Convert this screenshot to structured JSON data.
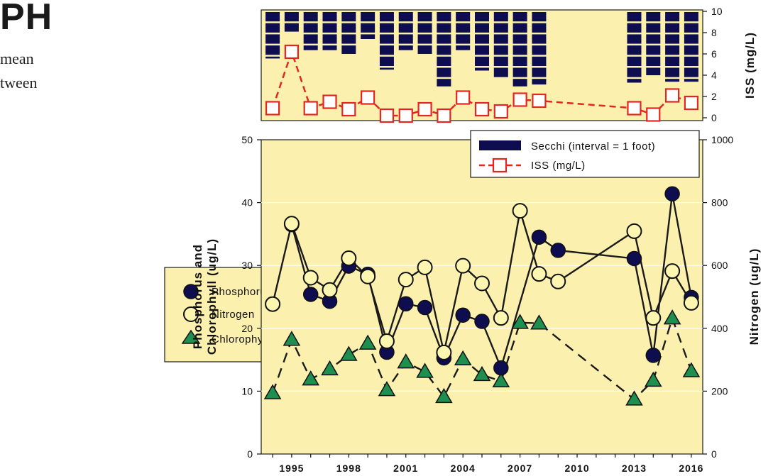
{
  "page_text": {
    "title_fragment": "PH",
    "line1": "mean",
    "line2": "tween"
  },
  "colors": {
    "panel_bg": "#fcf0ae",
    "secchi_bar": "#0d0d4f",
    "iss_line": "#e3261f",
    "phosphorus_fill": "#0d0d4f",
    "nitrogen_fill": "#fdf6b0",
    "chlorophyll_fill": "#1e8f4e",
    "line_color": "#1a1a1a"
  },
  "left_legend": {
    "items": [
      {
        "label": "Phosphorus",
        "icon": "circle-navy-icon"
      },
      {
        "label": "Nitrogen",
        "icon": "circle-yellow-icon"
      },
      {
        "label": "Chlorophyll",
        "icon": "triangle-green-icon"
      }
    ]
  },
  "chart_data": [
    {
      "type": "bar",
      "panel": "top",
      "ylabel": "ISS (mg/L)",
      "ylim": [
        0,
        10
      ],
      "yticks": [
        "0",
        "2",
        "4",
        "6",
        "8",
        "10"
      ],
      "series": [
        {
          "name": "Secchi (interval = 1 foot)",
          "style": "bars hanging from top, segmented per foot",
          "x": [
            1994,
            1995,
            1996,
            1997,
            1998,
            1999,
            2000,
            2001,
            2002,
            2003,
            2004,
            2005,
            2006,
            2007,
            2008,
            2013,
            2014,
            2015,
            2016
          ],
          "values": [
            4.2,
            1.9,
            3.5,
            3.5,
            3.9,
            2.5,
            5.2,
            3.5,
            3.9,
            6.8,
            3.5,
            5.3,
            6.0,
            6.8,
            6.6,
            6.4,
            5.8,
            6.3,
            6.3
          ]
        },
        {
          "name": "ISS (mg/L)",
          "style": "red dashed line with open squares",
          "x": [
            1994,
            1995,
            1996,
            1997,
            1998,
            1999,
            2000,
            2001,
            2002,
            2003,
            2004,
            2005,
            2006,
            2007,
            2008,
            2013,
            2014,
            2015,
            2016
          ],
          "values": [
            0.9,
            6.2,
            0.9,
            1.5,
            0.8,
            1.9,
            0.2,
            0.2,
            0.8,
            0.2,
            1.9,
            0.8,
            0.6,
            1.7,
            1.6,
            0.9,
            0.3,
            2.1,
            1.4
          ]
        }
      ]
    },
    {
      "type": "line",
      "panel": "main",
      "ylabel": "Phosphorus and Chlorophyll (ug/L)",
      "y2label": "Nitrogen (ug/L)",
      "ylim": [
        0,
        50
      ],
      "y2lim": [
        0,
        1000
      ],
      "xlim": [
        1993.4,
        2016.6
      ],
      "yticks": [
        "0",
        "10",
        "20",
        "30",
        "40",
        "50"
      ],
      "y2ticks": [
        "0",
        "200",
        "400",
        "600",
        "800",
        "1000"
      ],
      "xticks": [
        "1995",
        "1998",
        "2001",
        "2004",
        "2007",
        "2010",
        "2013",
        "2016"
      ],
      "legend": {
        "placement": "top-right",
        "items": [
          "Secchi (interval = 1 foot)",
          "ISS (mg/L)"
        ]
      },
      "series": [
        {
          "name": "Phosphorus",
          "axis": "left",
          "style": "solid line, navy circles",
          "x": [
            1995,
            1996,
            1997,
            1998,
            1999,
            2000,
            2001,
            2002,
            2003,
            2004,
            2005,
            2006,
            2008,
            2009,
            2013,
            2014,
            2015,
            2016
          ],
          "values": [
            36.5,
            25.4,
            24.3,
            29.9,
            28.6,
            16.2,
            23.9,
            23.3,
            15.3,
            22.1,
            21.1,
            13.7,
            34.5,
            32.4,
            31.1,
            15.7,
            41.4,
            24.9
          ]
        },
        {
          "name": "Nitrogen",
          "axis": "right",
          "style": "solid line, light yellow circles",
          "x": [
            1994,
            1995,
            1996,
            1997,
            1998,
            1999,
            2000,
            2001,
            2002,
            2003,
            2004,
            2005,
            2006,
            2007,
            2008,
            2009,
            2013,
            2014,
            2015,
            2016
          ],
          "values": [
            477,
            733,
            561,
            522,
            623,
            565,
            359,
            555,
            594,
            323,
            599,
            543,
            433,
            774,
            573,
            549,
            709,
            433,
            582,
            481
          ]
        },
        {
          "name": "Chlorophyll",
          "axis": "left",
          "style": "dashed line, green triangles",
          "x": [
            1994,
            1995,
            1996,
            1997,
            1998,
            1999,
            2000,
            2001,
            2002,
            2003,
            2004,
            2005,
            2006,
            2007,
            2008,
            2013,
            2014,
            2015,
            2016
          ],
          "values": [
            9.7,
            18.2,
            11.9,
            13.5,
            15.8,
            17.6,
            10.2,
            14.6,
            13.1,
            9.1,
            15.1,
            12.6,
            11.6,
            20.9,
            20.8,
            8.7,
            11.7,
            21.6,
            13.2
          ]
        }
      ]
    }
  ]
}
